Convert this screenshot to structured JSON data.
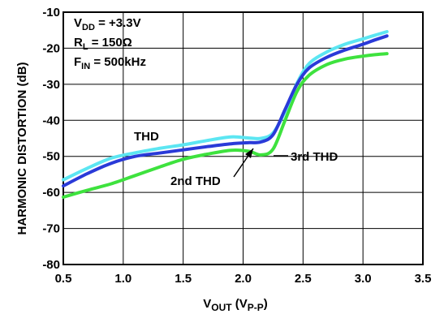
{
  "chart_data": {
    "type": "line",
    "xlabel": {
      "main": "V",
      "sub": "OUT",
      "paren_main": " (V",
      "paren_sub": "P-P",
      "close": ")"
    },
    "ylabel": "HARMONIC DISTORTION (dB)",
    "xlim": [
      0.5,
      3.5
    ],
    "ylim": [
      -80,
      -10
    ],
    "x_ticks": [
      "0.5",
      "1.0",
      "1.5",
      "2.0",
      "2.5",
      "3.0",
      "3.5"
    ],
    "y_ticks": [
      "-10",
      "-20",
      "-30",
      "-40",
      "-50",
      "-60",
      "-70",
      "-80"
    ],
    "grid": true,
    "conditions": [
      {
        "main": "V",
        "sub": "DD",
        "rest": " = +3.3V"
      },
      {
        "main": "R",
        "sub": "L",
        "rest": " = 150Ω"
      },
      {
        "main": "F",
        "sub": "IN",
        "rest": " = 500kHz"
      }
    ],
    "series": [
      {
        "name": "THD",
        "color": "#5ce6f2",
        "x": [
          0.5,
          0.7,
          0.9,
          1.1,
          1.3,
          1.5,
          1.7,
          1.9,
          2.05,
          2.15,
          2.25,
          2.35,
          2.45,
          2.55,
          2.7,
          2.85,
          3.0,
          3.1,
          3.2
        ],
        "y": [
          -56.5,
          -53.3,
          -50.5,
          -49.0,
          -47.8,
          -46.8,
          -45.6,
          -44.6,
          -44.9,
          -45.0,
          -43.5,
          -37.5,
          -29.7,
          -24.3,
          -21.0,
          -18.9,
          -17.4,
          -16.4,
          -15.4
        ]
      },
      {
        "name": "THD",
        "color": "#2a3ad8",
        "x": [
          0.5,
          0.7,
          0.9,
          1.1,
          1.3,
          1.5,
          1.7,
          1.9,
          2.05,
          2.15,
          2.25,
          2.35,
          2.45,
          2.55,
          2.7,
          2.85,
          3.0,
          3.1,
          3.2
        ],
        "y": [
          -58.2,
          -54.8,
          -51.9,
          -50.0,
          -49.1,
          -48.2,
          -47.3,
          -46.5,
          -46.2,
          -46.0,
          -44.0,
          -37.0,
          -30.0,
          -25.5,
          -22.5,
          -20.5,
          -18.9,
          -17.7,
          -16.6
        ]
      },
      {
        "name": "2nd THD",
        "color": "#3ee23e",
        "x": [
          0.5,
          0.7,
          0.9,
          1.1,
          1.3,
          1.5,
          1.7,
          1.9,
          2.05,
          2.15,
          2.25,
          2.35,
          2.45,
          2.55,
          2.7,
          2.85,
          3.0,
          3.1,
          3.2
        ],
        "y": [
          -61.3,
          -59.4,
          -57.6,
          -55.3,
          -53.0,
          -50.8,
          -49.4,
          -48.3,
          -48.6,
          -49.6,
          -48.0,
          -40.0,
          -32.0,
          -27.5,
          -24.5,
          -23.0,
          -22.2,
          -21.8,
          -21.5
        ]
      }
    ],
    "annotations": [
      {
        "text": "THD",
        "target_x": null,
        "target_y": null
      },
      {
        "text": "2nd THD",
        "target_x": 2.14,
        "target_y": -46.3
      },
      {
        "text": "3rd THD",
        "target_x": 2.35,
        "target_y": -49.0
      }
    ]
  }
}
